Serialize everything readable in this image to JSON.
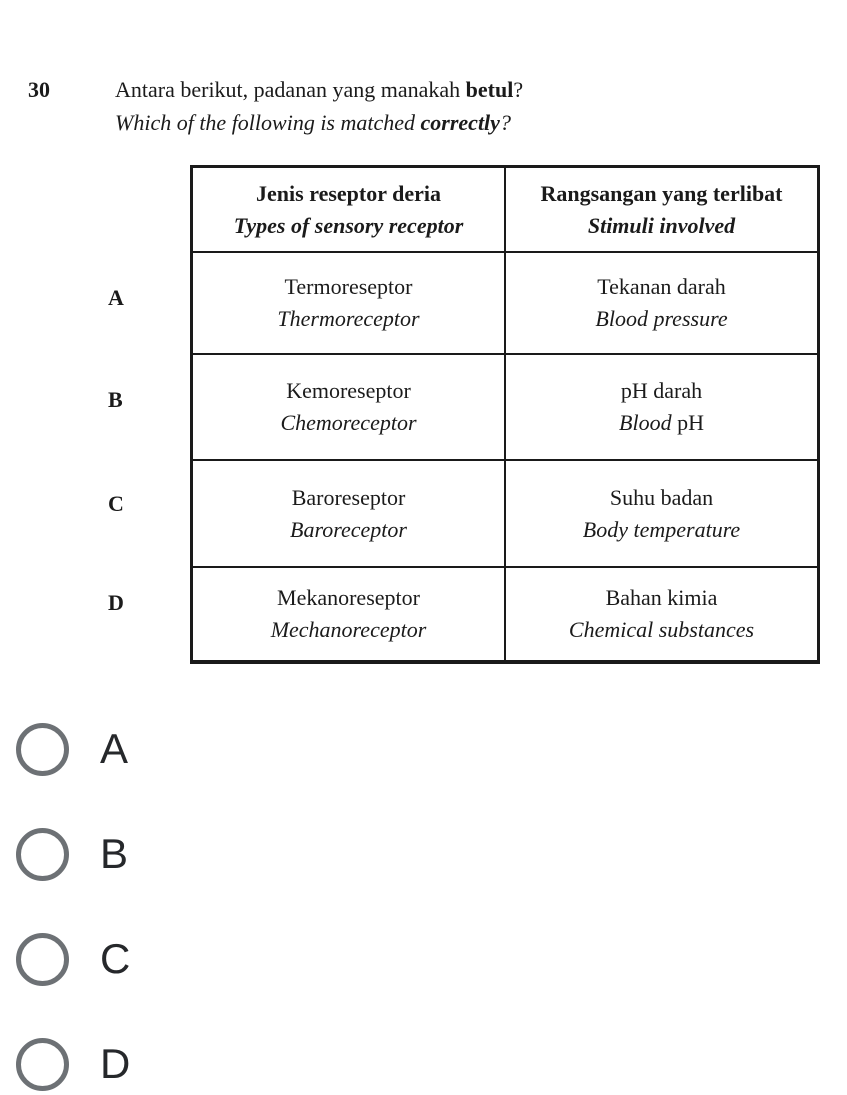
{
  "question": {
    "number": "30",
    "malay": {
      "pre": "Antara berikut, padanan yang manakah ",
      "bold": "betul",
      "post": "?"
    },
    "english": {
      "pre": "Which of the following is matched ",
      "bold": "correctly",
      "post": "?"
    }
  },
  "table": {
    "headers": {
      "receptor_ms": "Jenis reseptor deria",
      "receptor_en": "Types of sensory receptor",
      "stimulus_ms": "Rangsangan yang terlibat",
      "stimulus_en": "Stimuli involved"
    },
    "rows": [
      {
        "letter": "A",
        "receptor_ms": "Termoreseptor",
        "receptor_en": "Thermoreceptor",
        "stimulus_ms": "Tekanan darah",
        "stimulus_en": "Blood pressure"
      },
      {
        "letter": "B",
        "receptor_ms": "Kemoreseptor",
        "receptor_en": "Chemoreceptor",
        "stimulus_ms": "pH darah",
        "stimulus_en_italic": "Blood",
        "stimulus_en_upright": " pH"
      },
      {
        "letter": "C",
        "receptor_ms": "Baroreseptor",
        "receptor_en": "Baroreceptor",
        "stimulus_ms": "Suhu badan",
        "stimulus_en": "Body temperature"
      },
      {
        "letter": "D",
        "receptor_ms": "Mekanoreseptor",
        "receptor_en": "Mechanoreceptor",
        "stimulus_ms": "Bahan kimia",
        "stimulus_en": "Chemical substances"
      }
    ]
  },
  "options": [
    {
      "label": "A",
      "selected": false
    },
    {
      "label": "B",
      "selected": false
    },
    {
      "label": "C",
      "selected": false
    },
    {
      "label": "D",
      "selected": false
    }
  ],
  "colors": {
    "background": "#ffffff",
    "scan_text": "#1b1b1b",
    "table_border": "#1a1a1a",
    "radio_border": "#6d7175",
    "option_label": "#26282b"
  }
}
